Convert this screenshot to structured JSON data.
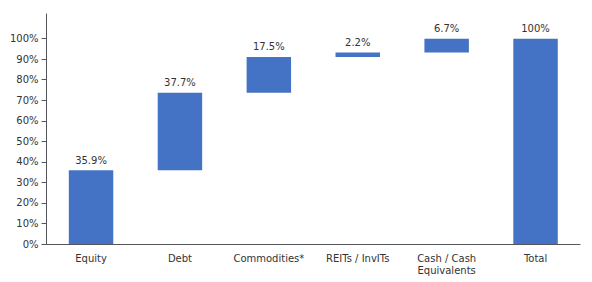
{
  "chart_data": {
    "type": "waterfall",
    "categories": [
      "Equity",
      "Debt",
      "Commodities*",
      "REITs / InvITs",
      "Cash / Cash\nEquivalents",
      "Total"
    ],
    "values": [
      35.9,
      37.7,
      17.5,
      2.2,
      6.7,
      100.0
    ],
    "value_labels": [
      "35.9%",
      "37.7%",
      "17.5%",
      "2.2%",
      "6.7%",
      "100%"
    ],
    "data_labels": true,
    "color": "#4472C4",
    "ylim": [
      0,
      112
    ],
    "yticks": [
      {
        "value": 0,
        "label": "0%"
      },
      {
        "value": 10,
        "label": "10%"
      },
      {
        "value": 20,
        "label": "20%"
      },
      {
        "value": 30,
        "label": "30%"
      },
      {
        "value": 40,
        "label": "40%"
      },
      {
        "value": 50,
        "label": "50%"
      },
      {
        "value": 60,
        "label": "60%"
      },
      {
        "value": 70,
        "label": "70%"
      },
      {
        "value": 80,
        "label": "80%"
      },
      {
        "value": 90,
        "label": "90%"
      },
      {
        "value": 100,
        "label": "100%"
      }
    ],
    "grid": false
  }
}
